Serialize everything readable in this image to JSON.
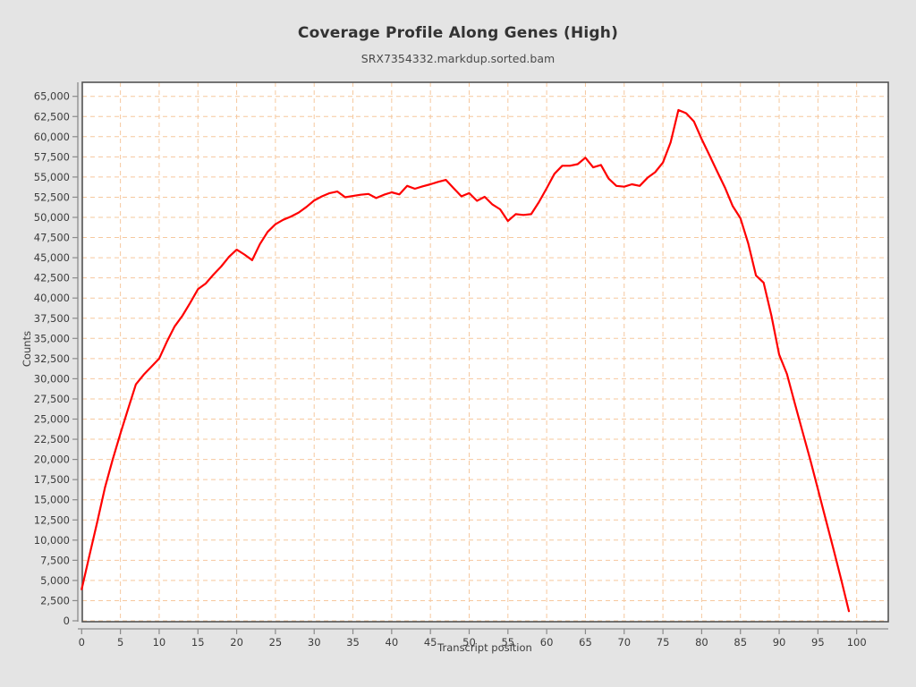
{
  "header": {
    "title": "Coverage Profile Along Genes (High)",
    "subtitle": "SRX7354332.markdup.sorted.bam"
  },
  "colors": {
    "figure_background": "#e4e4e4",
    "plot_background": "#ffffff",
    "plot_frame": "#545454",
    "axis_spine": "#8a8a8a",
    "tick_label": "#3c3c3c",
    "grid": "#f6c89e",
    "series_red": "#ff0000"
  },
  "chart_data": {
    "type": "line",
    "title": "Coverage Profile Along Genes (High)",
    "subtitle": "SRX7354332.markdup.sorted.bam",
    "xlabel": "Transcript position",
    "ylabel": "Counts",
    "xlim": [
      0,
      104
    ],
    "ylim": [
      0,
      66700
    ],
    "grid": true,
    "grid_style": "dashed",
    "legend_position": "none",
    "x_ticks": [
      0,
      5,
      10,
      15,
      20,
      25,
      30,
      35,
      40,
      45,
      50,
      55,
      60,
      65,
      70,
      75,
      80,
      85,
      90,
      95,
      100
    ],
    "y_ticks": [
      0,
      2500,
      5000,
      7500,
      10000,
      12500,
      15000,
      17500,
      20000,
      22500,
      25000,
      27500,
      30000,
      32500,
      35000,
      37500,
      40000,
      42500,
      45000,
      47500,
      50000,
      52500,
      55000,
      57500,
      60000,
      62500,
      65000
    ],
    "series": [
      {
        "name": "SRX7354332.markdup.sorted.bam",
        "color": "#ff0000",
        "x": [
          0,
          1,
          2,
          3,
          4,
          5,
          6,
          7,
          8,
          9,
          10,
          11,
          12,
          13,
          14,
          15,
          16,
          17,
          18,
          19,
          20,
          21,
          22,
          23,
          24,
          25,
          26,
          27,
          28,
          29,
          30,
          31,
          32,
          33,
          34,
          35,
          36,
          37,
          38,
          39,
          40,
          41,
          42,
          43,
          44,
          45,
          46,
          47,
          48,
          49,
          50,
          51,
          52,
          53,
          54,
          55,
          56,
          57,
          58,
          59,
          60,
          61,
          62,
          63,
          64,
          65,
          66,
          67,
          68,
          69,
          70,
          71,
          72,
          73,
          74,
          75,
          76,
          77,
          78,
          79,
          80,
          81,
          82,
          83,
          84,
          85,
          86,
          87,
          88,
          89,
          90,
          91,
          92,
          93,
          94,
          95,
          96,
          97,
          98,
          99
        ],
        "values": [
          3900,
          8100,
          12200,
          16500,
          20000,
          23200,
          26300,
          29300,
          30500,
          31500,
          32500,
          34600,
          36500,
          37800,
          39400,
          41100,
          41800,
          42900,
          43900,
          45100,
          46000,
          45400,
          44700,
          46700,
          48200,
          49150,
          49700,
          50100,
          50600,
          51300,
          52100,
          52600,
          53000,
          53200,
          52500,
          52650,
          52800,
          52900,
          52400,
          52800,
          53100,
          52850,
          53900,
          53550,
          53850,
          54100,
          54400,
          54650,
          53600,
          52600,
          53000,
          52050,
          52550,
          51600,
          51000,
          49550,
          50400,
          50300,
          50400,
          51900,
          53600,
          55400,
          56400,
          56400,
          56600,
          57400,
          56200,
          56500,
          54800,
          53900,
          53800,
          54100,
          53900,
          54900,
          55600,
          56800,
          59300,
          63300,
          62900,
          61900,
          59700,
          57700,
          55700,
          53700,
          51400,
          49900,
          46800,
          42800,
          41900,
          37800,
          33000,
          30600,
          27000,
          23500,
          20000,
          16300,
          12600,
          8900,
          5100,
          1200
        ]
      }
    ]
  }
}
